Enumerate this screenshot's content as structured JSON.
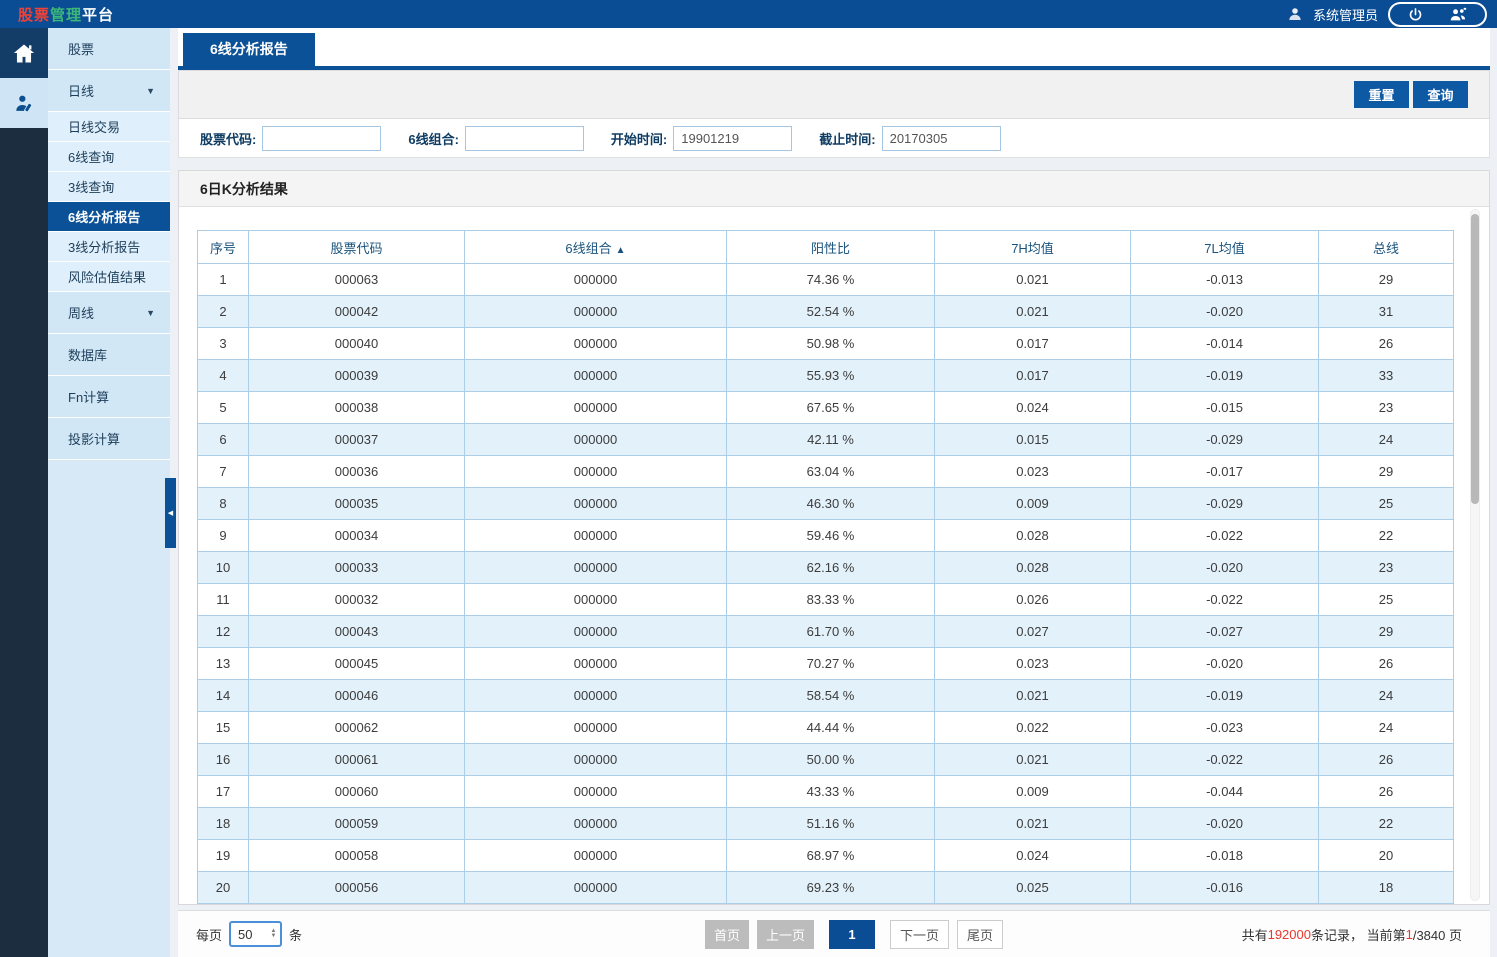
{
  "brand": {
    "red": "股票",
    "green": "管理",
    "white": "平台"
  },
  "header": {
    "user_name": "系统管理员"
  },
  "sidebar": {
    "items": [
      {
        "id": "stock",
        "label": "股票",
        "type": "top"
      },
      {
        "id": "daily-line",
        "label": "日线",
        "type": "top",
        "caret": "▼"
      },
      {
        "id": "daily-trade",
        "label": "日线交易",
        "type": "sub"
      },
      {
        "id": "line6-query",
        "label": "6线查询",
        "type": "sub"
      },
      {
        "id": "line3-query",
        "label": "3线查询",
        "type": "sub"
      },
      {
        "id": "line6-report",
        "label": "6线分析报告",
        "type": "sub",
        "active": true
      },
      {
        "id": "line3-report",
        "label": "3线分析报告",
        "type": "sub"
      },
      {
        "id": "risk-valuation",
        "label": "风险估值结果",
        "type": "sub"
      },
      {
        "id": "weekly-line",
        "label": "周线",
        "type": "top",
        "caret": "▼"
      },
      {
        "id": "database",
        "label": "数据库",
        "type": "top"
      },
      {
        "id": "fn-calc",
        "label": "Fn计算",
        "type": "top"
      },
      {
        "id": "projection-calc",
        "label": "投影计算",
        "type": "top"
      }
    ]
  },
  "tab": {
    "label": "6线分析报告"
  },
  "toolbar": {
    "reset_label": "重置",
    "search_label": "查询"
  },
  "filters": [
    {
      "id": "stock-code",
      "label": "股票代码:",
      "value": ""
    },
    {
      "id": "line6-combo",
      "label": "6线组合:",
      "value": ""
    },
    {
      "id": "start-time",
      "label": "开始时间:",
      "value": "19901219"
    },
    {
      "id": "end-time",
      "label": "截止时间:",
      "value": "20170305"
    }
  ],
  "results": {
    "title": "6日K分析结果",
    "columns": [
      {
        "label": "序号"
      },
      {
        "label": "股票代码"
      },
      {
        "label": "6线组合",
        "sort": "▲"
      },
      {
        "label": "阳性比"
      },
      {
        "label": "7H均值"
      },
      {
        "label": "7L均值"
      },
      {
        "label": "总线"
      }
    ],
    "rows": [
      [
        "1",
        "000063",
        "000000",
        "74.36 %",
        "0.021",
        "-0.013",
        "29"
      ],
      [
        "2",
        "000042",
        "000000",
        "52.54 %",
        "0.021",
        "-0.020",
        "31"
      ],
      [
        "3",
        "000040",
        "000000",
        "50.98 %",
        "0.017",
        "-0.014",
        "26"
      ],
      [
        "4",
        "000039",
        "000000",
        "55.93 %",
        "0.017",
        "-0.019",
        "33"
      ],
      [
        "5",
        "000038",
        "000000",
        "67.65 %",
        "0.024",
        "-0.015",
        "23"
      ],
      [
        "6",
        "000037",
        "000000",
        "42.11 %",
        "0.015",
        "-0.029",
        "24"
      ],
      [
        "7",
        "000036",
        "000000",
        "63.04 %",
        "0.023",
        "-0.017",
        "29"
      ],
      [
        "8",
        "000035",
        "000000",
        "46.30 %",
        "0.009",
        "-0.029",
        "25"
      ],
      [
        "9",
        "000034",
        "000000",
        "59.46 %",
        "0.028",
        "-0.022",
        "22"
      ],
      [
        "10",
        "000033",
        "000000",
        "62.16 %",
        "0.028",
        "-0.020",
        "23"
      ],
      [
        "11",
        "000032",
        "000000",
        "83.33 %",
        "0.026",
        "-0.022",
        "25"
      ],
      [
        "12",
        "000043",
        "000000",
        "61.70 %",
        "0.027",
        "-0.027",
        "29"
      ],
      [
        "13",
        "000045",
        "000000",
        "70.27 %",
        "0.023",
        "-0.020",
        "26"
      ],
      [
        "14",
        "000046",
        "000000",
        "58.54 %",
        "0.021",
        "-0.019",
        "24"
      ],
      [
        "15",
        "000062",
        "000000",
        "44.44 %",
        "0.022",
        "-0.023",
        "24"
      ],
      [
        "16",
        "000061",
        "000000",
        "50.00 %",
        "0.021",
        "-0.022",
        "26"
      ],
      [
        "17",
        "000060",
        "000000",
        "43.33 %",
        "0.009",
        "-0.044",
        "26"
      ],
      [
        "18",
        "000059",
        "000000",
        "51.16 %",
        "0.021",
        "-0.020",
        "22"
      ],
      [
        "19",
        "000058",
        "000000",
        "68.97 %",
        "0.024",
        "-0.018",
        "20"
      ],
      [
        "20",
        "000056",
        "000000",
        "69.23 %",
        "0.025",
        "-0.016",
        "18"
      ]
    ]
  },
  "pagination": {
    "per_page": {
      "prefix": "每页",
      "value": "50",
      "suffix": "条"
    },
    "buttons": [
      {
        "name": "first-page-button",
        "label": "首页",
        "state": "disabled"
      },
      {
        "name": "prev-page-button",
        "label": "上一页",
        "state": "disabled"
      },
      {
        "name": "page-1-button",
        "label": "1",
        "state": "active"
      },
      {
        "name": "next-page-button",
        "label": "下一页",
        "state": "normal"
      },
      {
        "name": "last-page-button",
        "label": "尾页",
        "state": "normal"
      }
    ],
    "summary": {
      "prefix": "共有 ",
      "total": "192000",
      "mid": " 条记录， 当前第 ",
      "current": "1",
      "suffix": "/3840 页"
    }
  },
  "colors": {
    "header_blue": "#0b4d94",
    "accent_blue": "#0b5197",
    "button_blue": "#0d59a4",
    "red": "#e8382d"
  }
}
